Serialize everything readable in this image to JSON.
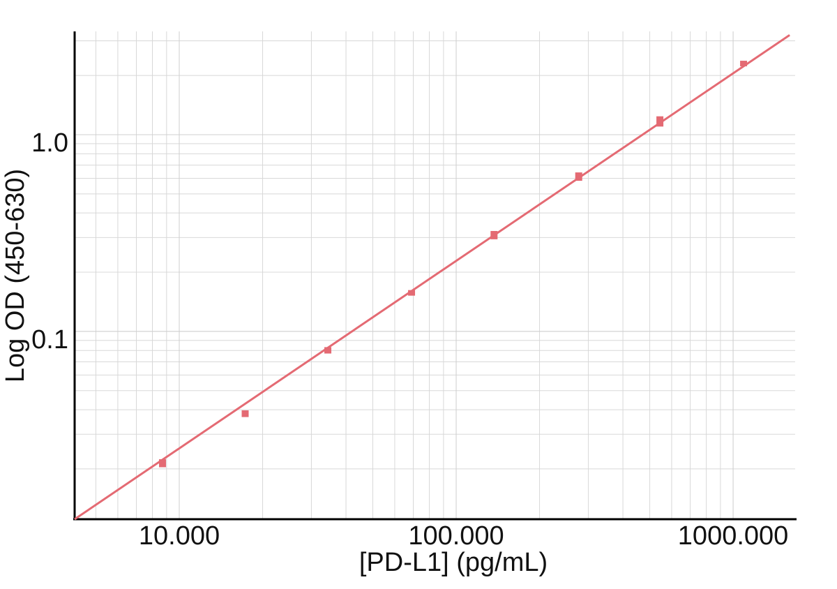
{
  "chart_data": {
    "type": "scatter",
    "x_label": "[PD-L1] (pg/mL)",
    "y_label": "Log OD (450-630)",
    "x_log": true,
    "y_log": true,
    "grid": true,
    "minor_grid": true,
    "color": "#e46a73",
    "xlim": [
      4.19,
      1675
    ],
    "ylim": [
      0.0111,
      3.35
    ],
    "xticks": [
      {
        "value": 10,
        "label": "10.000"
      },
      {
        "value": 100,
        "label": "100.000"
      },
      {
        "value": 1000,
        "label": "1000.000"
      }
    ],
    "yticks": [
      {
        "value": 0.1,
        "label": "0.1"
      },
      {
        "value": 1,
        "label": "1.0"
      }
    ],
    "x": [
      8.7,
      17.3,
      34.4,
      69,
      137,
      277,
      544,
      1091
    ],
    "values": [
      0.0214,
      0.0382,
      0.0802,
      0.157,
      0.309,
      0.613,
      1.17,
      2.3
    ],
    "errors": [
      0.001,
      0.0015,
      0.003,
      0.002,
      0.015,
      0.03,
      0.07,
      0.05
    ],
    "fit": {
      "x": [
        4.19,
        1600
      ],
      "values": [
        0.0111,
        3.21
      ]
    }
  }
}
